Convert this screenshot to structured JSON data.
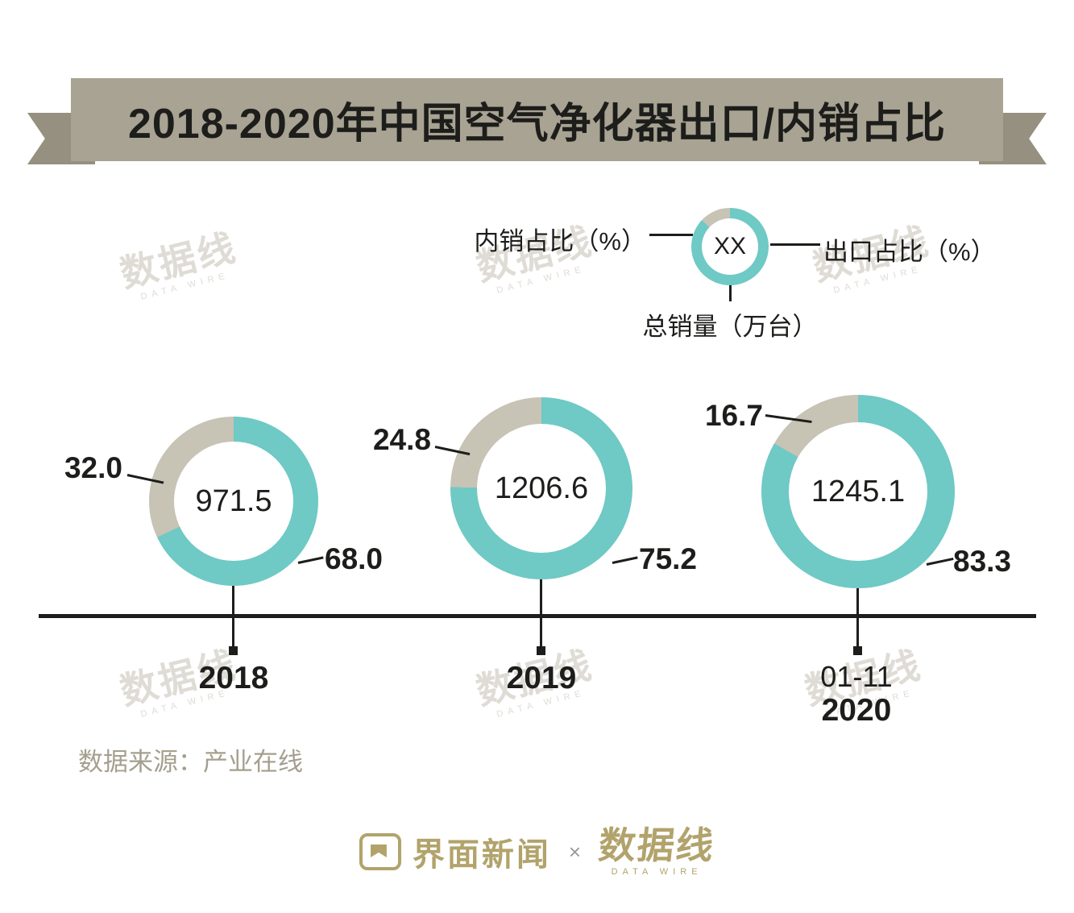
{
  "title": "2018-2020年中国空气净化器出口/内销占比",
  "legend": {
    "domestic_label": "内销占比（%）",
    "export_label": "出口占比（%）",
    "total_label": "总销量（万台）",
    "center_placeholder": "XX",
    "example_export_pct": 87
  },
  "colors": {
    "export": "#6fc9c5",
    "domestic": "#c7c3b5",
    "banner": "#a8a392",
    "banner_tail": "#95907f",
    "text": "#1d1d1b",
    "source": "#a49f8e",
    "brand": "#b1a36b",
    "watermark": "#dedcd5"
  },
  "chart_data": {
    "type": "pie",
    "subtype": "donut-series",
    "title": "2018-2020年中国空气净化器出口/内销占比",
    "total_unit": "万台",
    "pct_unit": "%",
    "series": [
      {
        "period_top": "",
        "period": "2018",
        "total": "971.5",
        "domestic_pct": "32.0",
        "export_pct": "68.0"
      },
      {
        "period_top": "",
        "period": "2019",
        "total": "1206.6",
        "domestic_pct": "24.8",
        "export_pct": "75.2"
      },
      {
        "period_top": "01-11",
        "period": "2020",
        "total": "1245.1",
        "domestic_pct": "16.7",
        "export_pct": "83.3"
      }
    ]
  },
  "source": "数据来源：产业在线",
  "footer": {
    "jiemian": "界面新闻",
    "separator": "×",
    "datawire": "数据线",
    "datawire_sub": "DATA WIRE"
  },
  "watermark": {
    "text": "数据线",
    "sub": "DATA WIRE"
  }
}
